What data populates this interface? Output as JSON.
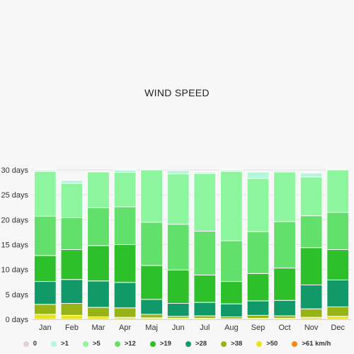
{
  "chart_data": {
    "type": "bar",
    "title": "WIND SPEED",
    "categories": [
      "Jan",
      "Feb",
      "Mar",
      "Apr",
      "Maj",
      "Jun",
      "Jul",
      "Aug",
      "Sep",
      "Oct",
      "Nov",
      "Dec"
    ],
    "y_ticks": [
      "0 days",
      "5 days",
      "10 days",
      "15 days",
      "20 days",
      "25 days",
      "30 days"
    ],
    "ylim": [
      0,
      30
    ],
    "stacked": true,
    "legend_position": "bottom",
    "series": [
      {
        "name": "0",
        "color": "#e6d0d8",
        "values": [
          0,
          0,
          0,
          0,
          0,
          0,
          0,
          0,
          0,
          0,
          0,
          0
        ]
      },
      {
        "name": ">1",
        "color": "#b4f7dc",
        "values": [
          0.3,
          0.6,
          0,
          0.5,
          0,
          0.7,
          0.3,
          0.3,
          1.3,
          0.3,
          0.8,
          0
        ]
      },
      {
        "name": ">5",
        "color": "#8cf59d",
        "values": [
          9,
          6.9,
          7.2,
          6.9,
          10.5,
          10.1,
          11.6,
          13.9,
          10.7,
          10,
          7.8,
          8.5
        ]
      },
      {
        "name": ">12",
        "color": "#63e06b",
        "values": [
          7.9,
          6.4,
          7.6,
          7.6,
          8.7,
          9.2,
          8.8,
          8.2,
          8.4,
          9.3,
          6.4,
          7.5
        ]
      },
      {
        "name": ">19",
        "color": "#2ec02a",
        "values": [
          5.2,
          6,
          7.1,
          7.6,
          6.8,
          6.7,
          5.5,
          4.5,
          5.5,
          6.5,
          7.5,
          6.1
        ]
      },
      {
        "name": ">28",
        "color": "#11996a",
        "values": [
          4.6,
          4.8,
          5.3,
          5.1,
          3,
          2.6,
          2.7,
          2.6,
          2.9,
          3.1,
          4.8,
          5.4
        ]
      },
      {
        "name": ">38",
        "color": "#96b514",
        "values": [
          2,
          2.4,
          1.9,
          1.9,
          0.7,
          0.4,
          0.5,
          0.4,
          0.6,
          0.5,
          1.7,
          1.9
        ]
      },
      {
        "name": ">50",
        "color": "#e8e51c",
        "values": [
          1,
          0.8,
          0.5,
          0.4,
          0.3,
          0.2,
          0.2,
          0.1,
          0.2,
          0.2,
          0.4,
          0.6
        ]
      },
      {
        "name": ">61 km/h",
        "color": "#f28c13",
        "values": [
          0,
          0,
          0,
          0,
          0,
          0,
          0,
          0,
          0,
          0,
          0,
          0
        ]
      }
    ]
  }
}
